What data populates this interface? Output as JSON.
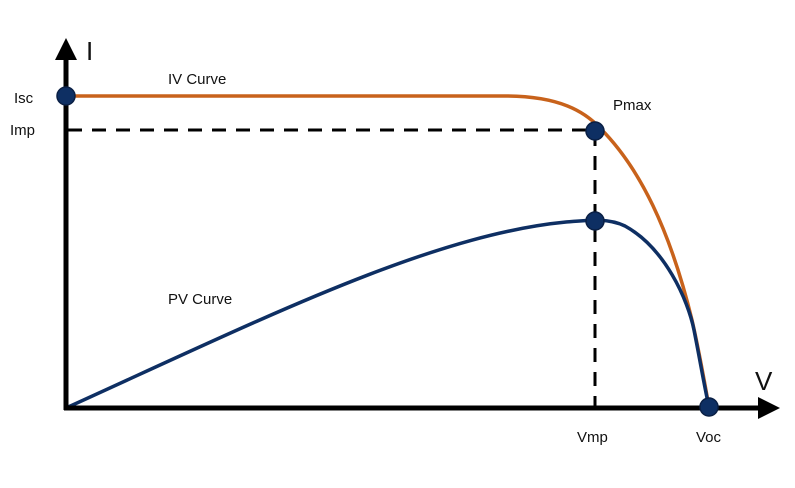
{
  "axes": {
    "y_label": "I",
    "x_label": "V"
  },
  "curves": {
    "iv": {
      "label": "IV Curve",
      "color": "#c8621b"
    },
    "pv": {
      "label": "PV Curve",
      "color": "#0e2f63"
    }
  },
  "guide_color": "#000000",
  "marker_color": "#0e2f63",
  "labels": {
    "isc": "Isc",
    "imp": "Imp",
    "pmax": "Pmax",
    "vmp": "Vmp",
    "voc": "Voc"
  }
}
